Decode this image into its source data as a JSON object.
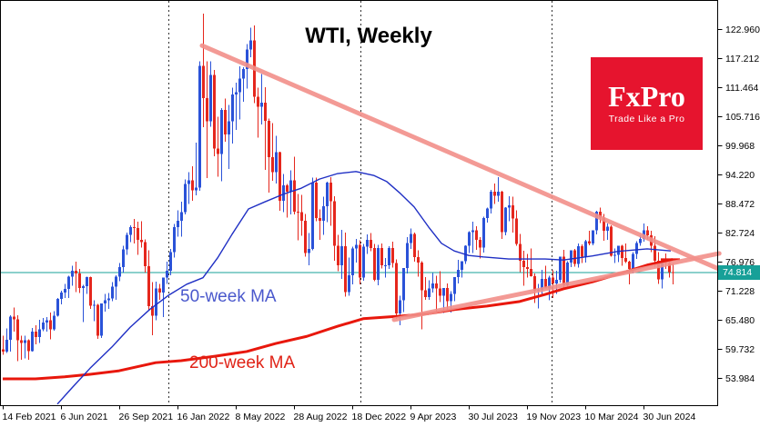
{
  "title": "WTI, Weekly",
  "logo": {
    "brand": "FxPro",
    "tagline": "Trade Like a Pro",
    "bg_color": "#e6142e"
  },
  "current_price": {
    "label": "74.814",
    "value": 74.814,
    "color": "#17a098"
  },
  "chart_data": {
    "type": "candlestick",
    "title": "WTI, Weekly",
    "timeframe": "weekly",
    "up_color": "#2a52d8",
    "down_color": "#e5271d",
    "axis_color": "#000000",
    "separator_color": "#333333",
    "trendline_color": "#f2908a",
    "x_tick_labels": [
      "14 Feb 2021",
      "6 Jun 2021",
      "26 Sep 2021",
      "16 Jan 2022",
      "8 May 2022",
      "28 Aug 2022",
      "18 Dec 2022",
      "9 Apr 2023",
      "30 Jul 2023",
      "19 Nov 2023",
      "10 Mar 2024",
      "30 Jun 2024"
    ],
    "x_tick_weeks": [
      0,
      16,
      32,
      48,
      64,
      80,
      96,
      112,
      128,
      144,
      160,
      176
    ],
    "y_tick_labels": [
      "122.960",
      "117.212",
      "111.464",
      "105.716",
      "99.968",
      "94.220",
      "88.472",
      "82.724",
      "76.976",
      "71.228",
      "65.480",
      "59.732",
      "53.984"
    ],
    "y_tick_values": [
      122.96,
      117.212,
      111.464,
      105.716,
      99.968,
      94.22,
      88.472,
      82.724,
      76.976,
      71.228,
      65.48,
      59.732,
      53.984
    ],
    "year_separator_weeks": [
      45.6,
      98.2,
      150.8
    ],
    "current_price": 74.814,
    "candles": [
      [
        59.6,
        62.3,
        58.6,
        59.2
      ],
      [
        59.2,
        63.8,
        58.9,
        61.5
      ],
      [
        61.5,
        66.4,
        59.2,
        66.1
      ],
      [
        66.1,
        67.9,
        63.1,
        65.6
      ],
      [
        65.6,
        66.4,
        57.3,
        61.4
      ],
      [
        61.4,
        62.3,
        57.6,
        60.9
      ],
      [
        60.9,
        62.3,
        57.8,
        61.4
      ],
      [
        61.4,
        61.6,
        57.6,
        59.3
      ],
      [
        59.3,
        63.9,
        59.2,
        63.1
      ],
      [
        63.1,
        64.4,
        60.6,
        62.1
      ],
      [
        62.1,
        65.5,
        60.9,
        63.6
      ],
      [
        63.6,
        65.8,
        63.2,
        64.9
      ],
      [
        64.9,
        66.0,
        63.1,
        65.4
      ],
      [
        65.4,
        66.9,
        61.6,
        63.6
      ],
      [
        63.6,
        67.2,
        63.3,
        66.3
      ],
      [
        66.3,
        69.8,
        66.1,
        69.6
      ],
      [
        69.6,
        71.2,
        68.5,
        70.9
      ],
      [
        70.9,
        72.6,
        69.8,
        71.6
      ],
      [
        71.6,
        74.2,
        69.8,
        74.0
      ],
      [
        74.0,
        76.2,
        72.2,
        75.2
      ],
      [
        75.2,
        77.0,
        71.0,
        74.6
      ],
      [
        74.6,
        75.5,
        70.8,
        71.8
      ],
      [
        71.8,
        72.4,
        65.0,
        72.1
      ],
      [
        72.1,
        74.0,
        70.6,
        73.9
      ],
      [
        73.9,
        74.0,
        67.6,
        68.3
      ],
      [
        68.3,
        69.3,
        65.2,
        68.4
      ],
      [
        68.4,
        68.6,
        61.7,
        62.3
      ],
      [
        62.3,
        68.7,
        61.9,
        68.7
      ],
      [
        68.7,
        70.6,
        67.1,
        69.3
      ],
      [
        69.3,
        70.8,
        67.6,
        69.7
      ],
      [
        69.7,
        72.9,
        69.2,
        72.0
      ],
      [
        72.0,
        74.3,
        69.4,
        74.0
      ],
      [
        74.0,
        76.7,
        73.1,
        75.9
      ],
      [
        75.9,
        80.1,
        74.8,
        79.4
      ],
      [
        79.4,
        82.7,
        78.3,
        82.3
      ],
      [
        82.3,
        84.2,
        80.8,
        83.8
      ],
      [
        83.8,
        85.4,
        80.6,
        83.6
      ],
      [
        83.6,
        84.9,
        78.3,
        81.3
      ],
      [
        81.3,
        85.0,
        79.8,
        80.8
      ],
      [
        80.8,
        81.4,
        74.8,
        76.1
      ],
      [
        76.1,
        79.2,
        67.4,
        68.2
      ],
      [
        68.2,
        72.9,
        62.4,
        66.3
      ],
      [
        66.3,
        73.0,
        65.4,
        71.7
      ],
      [
        71.7,
        72.6,
        69.4,
        70.9
      ],
      [
        70.9,
        73.8,
        66.0,
        73.8
      ],
      [
        73.8,
        77.0,
        72.6,
        75.2
      ],
      [
        75.2,
        79.5,
        74.3,
        78.9
      ],
      [
        78.9,
        84.4,
        77.8,
        83.8
      ],
      [
        83.8,
        87.1,
        81.9,
        85.1
      ],
      [
        85.1,
        88.8,
        81.9,
        86.8
      ],
      [
        86.8,
        93.2,
        86.3,
        92.3
      ],
      [
        92.3,
        94.7,
        88.4,
        93.1
      ],
      [
        93.1,
        95.8,
        89.0,
        91.1
      ],
      [
        91.1,
        100.5,
        90.1,
        91.6
      ],
      [
        91.6,
        116.6,
        91.0,
        115.7
      ],
      [
        115.7,
        126.0,
        103.6,
        109.3
      ],
      [
        109.3,
        116.6,
        93.5,
        104.7
      ],
      [
        104.7,
        116.6,
        103.7,
        113.9
      ],
      [
        113.9,
        114.9,
        97.8,
        99.3
      ],
      [
        99.3,
        105.6,
        93.8,
        98.3
      ],
      [
        98.3,
        107.3,
        92.9,
        107.0
      ],
      [
        107.0,
        109.2,
        100.7,
        102.1
      ],
      [
        102.1,
        108.0,
        95.3,
        104.7
      ],
      [
        104.7,
        111.4,
        100.3,
        110.0
      ],
      [
        110.0,
        112.4,
        103.0,
        110.5
      ],
      [
        110.5,
        115.6,
        105.1,
        113.2
      ],
      [
        113.2,
        115.4,
        108.6,
        115.1
      ],
      [
        115.1,
        120.0,
        111.2,
        118.9
      ],
      [
        118.9,
        123.2,
        117.4,
        120.7
      ],
      [
        120.7,
        123.7,
        108.3,
        109.6
      ],
      [
        109.6,
        111.4,
        101.5,
        107.6
      ],
      [
        107.6,
        114.1,
        104.1,
        108.4
      ],
      [
        108.4,
        111.5,
        95.1,
        104.8
      ],
      [
        104.8,
        105.3,
        90.6,
        97.6
      ],
      [
        97.6,
        104.4,
        93.0,
        94.7
      ],
      [
        94.7,
        101.9,
        92.4,
        98.6
      ],
      [
        98.6,
        98.7,
        87.0,
        89.0
      ],
      [
        89.0,
        94.3,
        86.8,
        92.1
      ],
      [
        92.1,
        92.3,
        85.7,
        90.8
      ],
      [
        90.8,
        95.0,
        86.3,
        93.1
      ],
      [
        93.1,
        97.7,
        86.3,
        86.9
      ],
      [
        86.9,
        90.4,
        81.2,
        86.8
      ],
      [
        86.8,
        90.2,
        82.1,
        85.1
      ],
      [
        85.1,
        86.4,
        78.0,
        78.7
      ],
      [
        78.7,
        82.6,
        76.3,
        79.5
      ],
      [
        79.5,
        93.6,
        79.2,
        92.6
      ],
      [
        92.6,
        93.6,
        85.0,
        85.6
      ],
      [
        85.6,
        87.3,
        81.3,
        85.1
      ],
      [
        85.1,
        89.8,
        82.3,
        87.9
      ],
      [
        87.9,
        92.8,
        84.8,
        92.6
      ],
      [
        92.6,
        93.7,
        84.1,
        88.9
      ],
      [
        88.9,
        89.9,
        77.2,
        80.1
      ],
      [
        80.1,
        82.3,
        75.1,
        76.3
      ],
      [
        76.3,
        83.3,
        73.6,
        80.0
      ],
      [
        80.0,
        82.7,
        70.1,
        71.0
      ],
      [
        71.0,
        77.8,
        70.2,
        74.3
      ],
      [
        74.3,
        79.9,
        72.5,
        79.6
      ],
      [
        79.6,
        81.5,
        76.8,
        80.3
      ],
      [
        80.3,
        81.2,
        72.5,
        73.8
      ],
      [
        73.8,
        80.5,
        73.2,
        79.9
      ],
      [
        79.9,
        82.4,
        78.5,
        81.3
      ],
      [
        81.3,
        82.6,
        79.0,
        79.7
      ],
      [
        79.7,
        80.5,
        73.1,
        73.4
      ],
      [
        73.4,
        80.3,
        72.3,
        79.7
      ],
      [
        79.7,
        80.6,
        75.6,
        76.3
      ],
      [
        76.3,
        77.7,
        73.8,
        76.3
      ],
      [
        76.3,
        80.0,
        75.5,
        79.7
      ],
      [
        79.7,
        80.9,
        75.8,
        76.7
      ],
      [
        76.7,
        77.4,
        65.7,
        66.7
      ],
      [
        66.7,
        70.2,
        64.4,
        69.3
      ],
      [
        69.3,
        75.7,
        67.0,
        75.7
      ],
      [
        75.7,
        81.8,
        74.6,
        80.7
      ],
      [
        80.7,
        83.5,
        79.5,
        82.5
      ],
      [
        82.5,
        82.7,
        77.0,
        77.9
      ],
      [
        77.9,
        79.2,
        74.0,
        76.8
      ],
      [
        76.8,
        77.1,
        63.6,
        71.3
      ],
      [
        71.3,
        73.9,
        69.4,
        70.0
      ],
      [
        70.0,
        73.3,
        69.4,
        71.7
      ],
      [
        71.7,
        74.7,
        70.9,
        72.7
      ],
      [
        72.7,
        74.2,
        67.0,
        71.7
      ],
      [
        71.7,
        75.1,
        69.0,
        70.2
      ],
      [
        70.2,
        71.8,
        66.8,
        71.8
      ],
      [
        71.8,
        72.7,
        67.3,
        69.2
      ],
      [
        69.2,
        71.1,
        66.9,
        70.6
      ],
      [
        70.6,
        73.9,
        69.2,
        73.9
      ],
      [
        73.9,
        77.3,
        72.7,
        75.4
      ],
      [
        75.4,
        77.1,
        73.8,
        77.1
      ],
      [
        77.1,
        80.2,
        76.5,
        80.1
      ],
      [
        80.1,
        83.0,
        78.7,
        82.8
      ],
      [
        82.8,
        84.9,
        78.7,
        83.2
      ],
      [
        83.2,
        84.0,
        79.3,
        81.3
      ],
      [
        81.3,
        81.8,
        77.6,
        79.8
      ],
      [
        79.8,
        85.9,
        78.8,
        85.6
      ],
      [
        85.6,
        87.7,
        84.7,
        87.5
      ],
      [
        87.5,
        91.2,
        86.5,
        90.8
      ],
      [
        90.8,
        92.4,
        88.4,
        90.0
      ],
      [
        90.0,
        93.7,
        88.8,
        90.8
      ],
      [
        90.8,
        91.0,
        81.5,
        82.8
      ],
      [
        82.8,
        87.8,
        82.2,
        87.7
      ],
      [
        87.7,
        89.9,
        85.0,
        88.1
      ],
      [
        88.1,
        89.8,
        82.7,
        85.5
      ],
      [
        85.5,
        87.1,
        80.1,
        80.5
      ],
      [
        80.5,
        82.5,
        74.9,
        77.2
      ],
      [
        77.2,
        79.1,
        72.2,
        75.9
      ],
      [
        75.9,
        78.5,
        73.8,
        75.5
      ],
      [
        75.5,
        79.6,
        74.0,
        74.1
      ],
      [
        74.1,
        74.6,
        68.8,
        71.2
      ],
      [
        71.2,
        72.6,
        67.7,
        71.4
      ],
      [
        71.4,
        75.4,
        70.2,
        73.6
      ],
      [
        73.6,
        76.2,
        71.8,
        71.7
      ],
      [
        71.7,
        74.2,
        69.3,
        73.8
      ],
      [
        73.8,
        75.3,
        69.8,
        72.7
      ],
      [
        72.7,
        75.2,
        70.6,
        73.4
      ],
      [
        73.4,
        77.6,
        72.8,
        78.0
      ],
      [
        78.0,
        79.3,
        71.4,
        72.3
      ],
      [
        72.3,
        77.1,
        71.6,
        76.8
      ],
      [
        76.8,
        79.1,
        75.9,
        79.2
      ],
      [
        79.2,
        79.5,
        76.0,
        76.5
      ],
      [
        76.5,
        80.6,
        75.8,
        80.0
      ],
      [
        80.0,
        80.4,
        76.7,
        78.0
      ],
      [
        78.0,
        81.3,
        76.8,
        81.0
      ],
      [
        81.0,
        83.1,
        80.2,
        80.6
      ],
      [
        80.6,
        83.2,
        80.2,
        83.2
      ],
      [
        83.2,
        87.0,
        82.4,
        86.9
      ],
      [
        86.9,
        87.7,
        84.6,
        85.7
      ],
      [
        85.7,
        86.4,
        81.1,
        83.1
      ],
      [
        83.1,
        84.5,
        81.3,
        83.9
      ],
      [
        83.9,
        84.2,
        78.0,
        78.1
      ],
      [
        78.1,
        79.6,
        76.7,
        78.3
      ],
      [
        78.3,
        80.1,
        76.9,
        80.1
      ],
      [
        80.1,
        80.3,
        76.2,
        77.7
      ],
      [
        77.7,
        80.6,
        76.7,
        77.0
      ],
      [
        77.0,
        77.2,
        72.5,
        75.5
      ],
      [
        75.5,
        78.9,
        74.6,
        78.5
      ],
      [
        78.5,
        81.0,
        77.5,
        80.7
      ],
      [
        80.7,
        82.2,
        80.1,
        81.5
      ],
      [
        81.5,
        84.5,
        80.9,
        83.2
      ],
      [
        83.2,
        84.0,
        81.4,
        82.2
      ],
      [
        82.2,
        83.1,
        78.9,
        80.1
      ],
      [
        80.1,
        82.0,
        76.0,
        77.2
      ],
      [
        77.2,
        78.9,
        72.6,
        73.5
      ],
      [
        73.5,
        77.2,
        71.7,
        77.0
      ],
      [
        77.0,
        78.6,
        75.5,
        76.7
      ],
      [
        76.7,
        77.6,
        73.8,
        74.9
      ],
      [
        74.9,
        76.6,
        72.5,
        74.81
      ]
    ],
    "ma50": {
      "label": "50-week MA",
      "color": "#1f2fc4",
      "label_color": "#4a58cc",
      "points": [
        [
          15,
          48.8
        ],
        [
          19,
          52.0
        ],
        [
          24,
          55.9
        ],
        [
          30,
          60.1
        ],
        [
          35,
          64.0
        ],
        [
          40.5,
          67.6
        ],
        [
          45.5,
          70.3
        ],
        [
          50.5,
          72.5
        ],
        [
          55,
          73.8
        ],
        [
          59,
          77.7
        ],
        [
          63,
          82.4
        ],
        [
          67.5,
          87.4
        ],
        [
          72,
          88.8
        ],
        [
          77,
          90.3
        ],
        [
          82,
          91.5
        ],
        [
          87,
          93.3
        ],
        [
          92,
          94.4
        ],
        [
          97,
          94.8
        ],
        [
          102,
          94.0
        ],
        [
          105.5,
          92.8
        ],
        [
          109,
          90.6
        ],
        [
          113,
          87.8
        ],
        [
          117,
          83.8
        ],
        [
          120.5,
          80.6
        ],
        [
          124,
          79.1
        ],
        [
          128,
          78.2
        ],
        [
          132,
          77.9
        ],
        [
          139,
          77.5
        ],
        [
          149,
          77.5
        ],
        [
          154,
          77.3
        ],
        [
          162,
          78.1
        ],
        [
          169,
          79.0
        ],
        [
          177,
          79.5
        ],
        [
          183.5,
          79.1
        ]
      ]
    },
    "ma200": {
      "label": "200-week MA",
      "color": "#e8170c",
      "label_color": "#e02317",
      "points": [
        [
          0,
          53.8
        ],
        [
          9,
          53.8
        ],
        [
          17,
          54.2
        ],
        [
          24,
          54.7
        ],
        [
          32,
          55.4
        ],
        [
          42,
          57.0
        ],
        [
          49,
          57.4
        ],
        [
          58.5,
          58.3
        ],
        [
          67,
          59.2
        ],
        [
          75,
          60.8
        ],
        [
          83.5,
          62.2
        ],
        [
          92,
          64.2
        ],
        [
          99,
          65.7
        ],
        [
          109,
          66.2
        ],
        [
          117,
          66.7
        ],
        [
          124,
          67.5
        ],
        [
          133,
          68.2
        ],
        [
          142,
          69.1
        ],
        [
          149,
          70.5
        ],
        [
          154,
          71.6
        ],
        [
          162,
          73.0
        ],
        [
          169,
          74.5
        ],
        [
          177,
          76.3
        ],
        [
          184,
          77.4
        ]
      ],
      "end_tick": true
    },
    "trendlines": [
      {
        "name": "descending-resistance",
        "from": [
          54.75,
          119.7
        ],
        "to": [
          196.8,
          75.5
        ]
      },
      {
        "name": "ascending-support",
        "from": [
          107.5,
          65.5
        ],
        "to": [
          196.8,
          78.6
        ]
      }
    ]
  }
}
